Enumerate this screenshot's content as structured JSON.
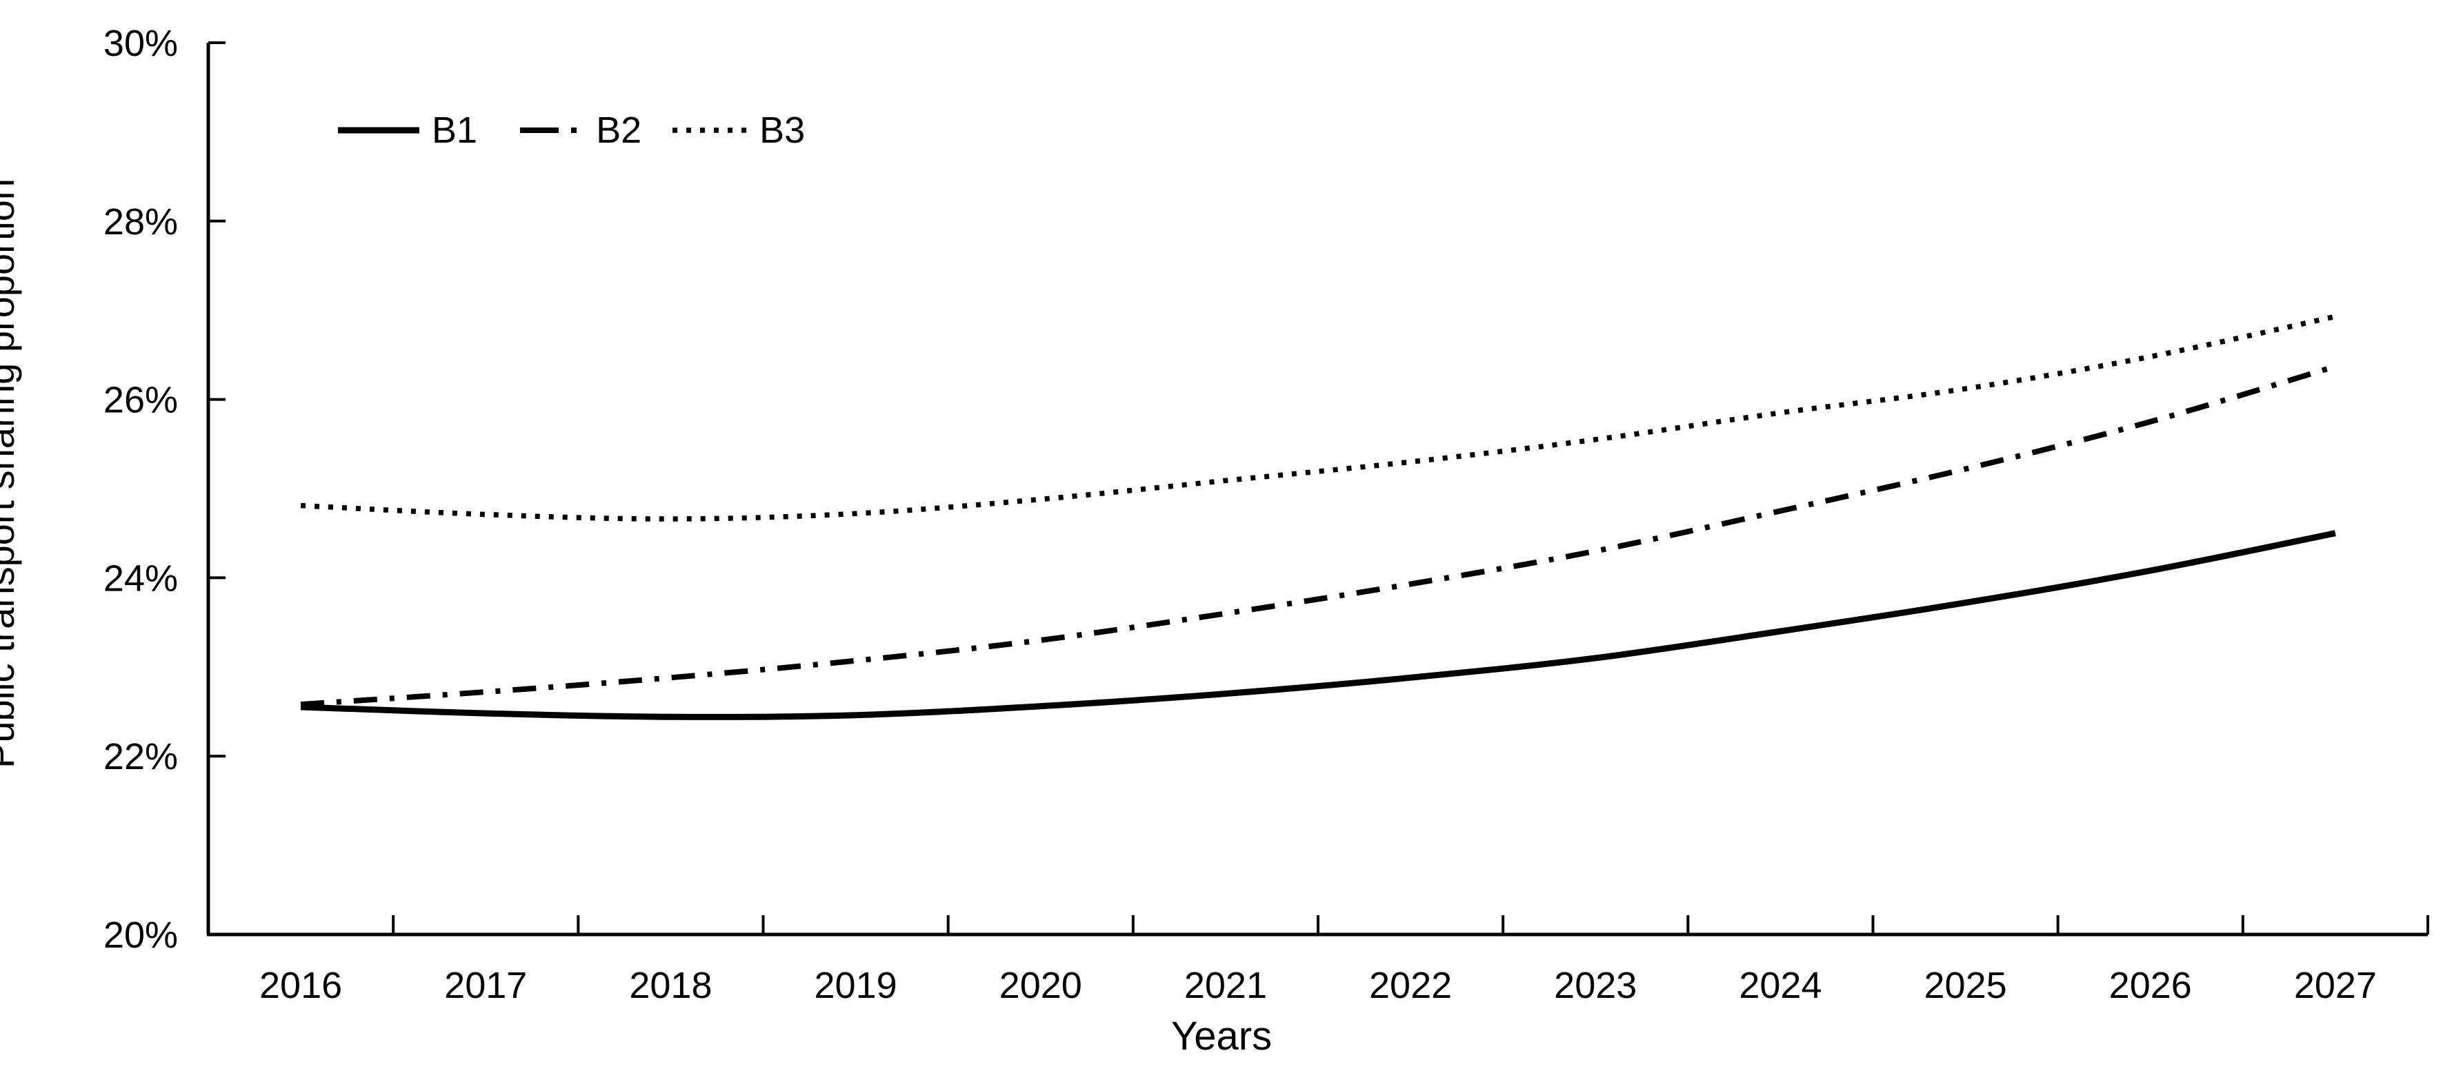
{
  "page": {
    "background": "#ffffff",
    "text_color": "#000000"
  },
  "chart_data": {
    "type": "line",
    "title": "",
    "xlabel": "Years",
    "ylabel": "Public transport sharing proportion",
    "categories": [
      "2016",
      "2017",
      "2018",
      "2019",
      "2020",
      "2021",
      "2022",
      "2023",
      "2024",
      "2025",
      "2026",
      "2027"
    ],
    "y_ticks": [
      "20%",
      "22%",
      "24%",
      "26%",
      "28%",
      "30%"
    ],
    "ylim": [
      20,
      30
    ],
    "y_tick_step": 2,
    "grid": false,
    "line_color": "#000000",
    "legend_position": "top-left-inside",
    "series": [
      {
        "name": "B1",
        "line_style": "solid",
        "values": [
          22.55,
          22.48,
          22.44,
          22.46,
          22.56,
          22.7,
          22.88,
          23.1,
          23.4,
          23.72,
          24.08,
          24.5
        ]
      },
      {
        "name": "B2",
        "line_style": "dash-dot",
        "values": [
          22.58,
          22.72,
          22.88,
          23.07,
          23.3,
          23.6,
          23.93,
          24.3,
          24.75,
          25.22,
          25.75,
          26.37
        ]
      },
      {
        "name": "B3",
        "line_style": "dotted",
        "values": [
          24.81,
          24.71,
          24.66,
          24.72,
          24.88,
          25.09,
          25.3,
          25.55,
          25.85,
          26.12,
          26.48,
          26.93
        ]
      }
    ]
  }
}
